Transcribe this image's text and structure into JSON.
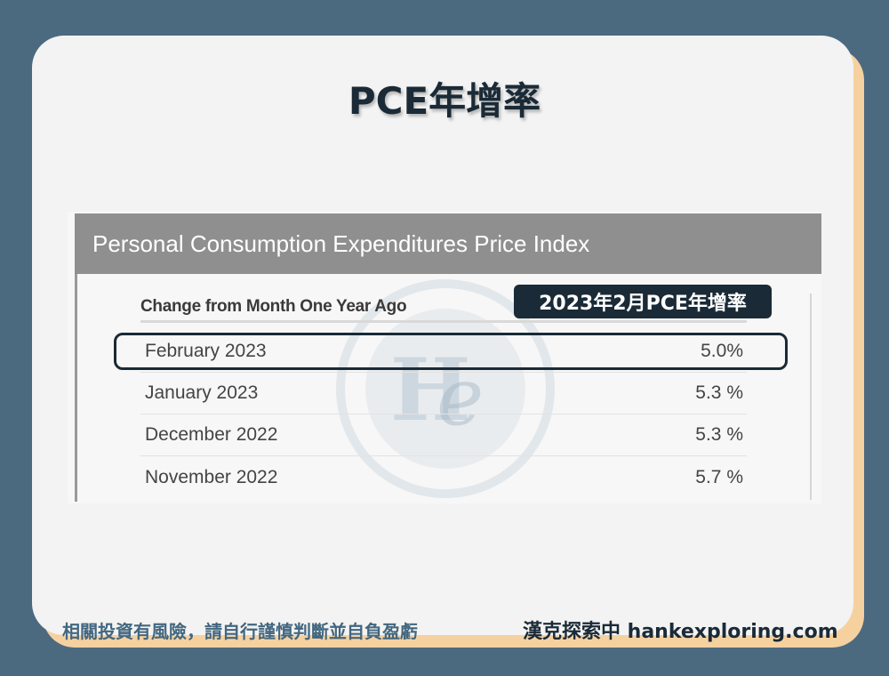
{
  "title": "PCE年增率",
  "panel": {
    "header": "Personal Consumption Expenditures Price Index",
    "column_header": "Change from Month One Year Ago",
    "badge": "2023年2月PCE年增率",
    "rows": [
      {
        "label": "February 2023",
        "value": "5.0%"
      },
      {
        "label": "January 2023",
        "value": "5.3 %"
      },
      {
        "label": "December 2022",
        "value": "5.3 %"
      },
      {
        "label": "November 2022",
        "value": "5.7 %"
      }
    ]
  },
  "footer": {
    "disclaimer": "相關投資有風險，請自行謹慎判斷並自負盈虧",
    "brand": "漢克探索中 hankexploring.com"
  },
  "colors": {
    "background": "#4b6a80",
    "card": "#f3f3f3",
    "card_shadow": "#f6d1a0",
    "navy": "#1a2a36",
    "header_gray": "#8f8f8f",
    "footer_blue": "#43677f"
  },
  "icons": {
    "watermark": "hank-logo-watermark-icon"
  }
}
